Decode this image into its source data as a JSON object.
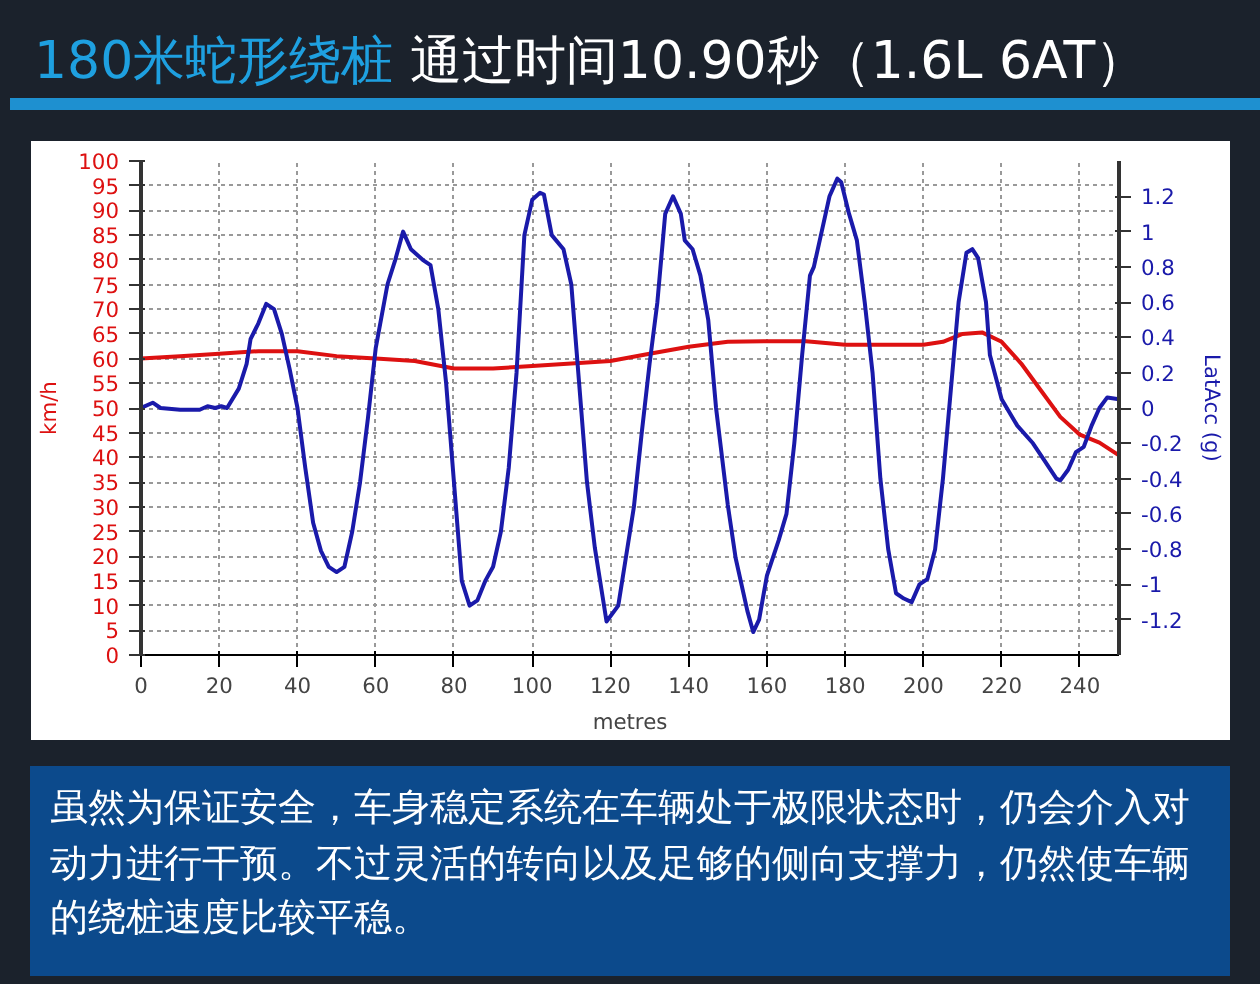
{
  "chart_data": {
    "type": "line",
    "title": "180米蛇形绕桩",
    "subtitle": "通过时间10.90秒（1.6L 6AT）",
    "xlabel": "metres",
    "ylabel": "km/h",
    "y2label": "LatAcc (g)",
    "annotations": [
      "虽然为保证安全，车身稳定系统在车辆处于极限状态时，仍会介入对动力进行干预。不过灵活的转向以及足够的侧向支撑力，仍然使车辆的绕桩速度比较平稳。"
    ],
    "xlim": [
      0,
      250
    ],
    "xticks": [
      0,
      20,
      40,
      60,
      80,
      100,
      120,
      140,
      160,
      180,
      200,
      220,
      240
    ],
    "ylim": [
      0,
      100
    ],
    "yticks": [
      0,
      5,
      10,
      15,
      20,
      25,
      30,
      35,
      40,
      45,
      50,
      55,
      60,
      65,
      70,
      75,
      80,
      85,
      90,
      95,
      100
    ],
    "y2lim": [
      -1.4,
      1.4
    ],
    "y2ticks": [
      -1.2,
      -1,
      -0.8,
      -0.6,
      -0.4,
      -0.2,
      0,
      0.2,
      0.4,
      0.6,
      0.8,
      1,
      1.2
    ],
    "grid": true,
    "line_style": "solid",
    "marker": "none",
    "series": [
      {
        "color": "#dd1111",
        "x": [
          0,
          10,
          20,
          30,
          40,
          50,
          60,
          70,
          80,
          90,
          100,
          110,
          120,
          130,
          140,
          150,
          160,
          170,
          180,
          190,
          200,
          205,
          210,
          215,
          220,
          225,
          230,
          235,
          240,
          245,
          250
        ],
        "values": [
          60,
          60.5,
          61,
          61.5,
          61.5,
          60.5,
          60,
          59.5,
          58,
          58,
          58.5,
          59,
          59.5,
          61,
          62.4,
          63.4,
          63.5,
          63.5,
          62.8,
          62.8,
          62.8,
          63.4,
          65,
          65.3,
          63.4,
          59,
          53.6,
          48.2,
          44.6,
          43,
          40.4
        ]
      },
      {
        "color": "#1a1aaa",
        "axis": "y2",
        "x": [
          0,
          3,
          5,
          10,
          15,
          17,
          19,
          20.5,
          22,
          25,
          27,
          28,
          30,
          32,
          34,
          36,
          38,
          40,
          42,
          44,
          46,
          48,
          50,
          52,
          54,
          56,
          58,
          60,
          63,
          65,
          67,
          69,
          72,
          74,
          76,
          78,
          80,
          82,
          84,
          86,
          88,
          90,
          92,
          94,
          96,
          98,
          100,
          102,
          103,
          105,
          108,
          110,
          112,
          114,
          116,
          118,
          119,
          122,
          124,
          126,
          128,
          130,
          132,
          134,
          136,
          138,
          139,
          141,
          143,
          145,
          147,
          150,
          152,
          155,
          156.5,
          158,
          160,
          163,
          165,
          167,
          169,
          171,
          172,
          174,
          176,
          178,
          179,
          181,
          183,
          185,
          187,
          189,
          191,
          193,
          195,
          197,
          199,
          201,
          203,
          205,
          207,
          209,
          211,
          212.5,
          214,
          216,
          217,
          220,
          224,
          228,
          231,
          234,
          235,
          237,
          239,
          241,
          243,
          245,
          247,
          250
        ],
        "values": [
          0,
          0.03,
          0,
          -0.01,
          -0.01,
          0.01,
          0,
          0.01,
          0,
          0.11,
          0.25,
          0.39,
          0.48,
          0.59,
          0.56,
          0.42,
          0.22,
          0,
          -0.34,
          -0.65,
          -0.81,
          -0.9,
          -0.93,
          -0.9,
          -0.7,
          -0.42,
          -0.06,
          0.34,
          0.7,
          0.84,
          1.0,
          0.9,
          0.84,
          0.81,
          0.56,
          0.14,
          -0.42,
          -0.98,
          -1.12,
          -1.09,
          -0.98,
          -0.9,
          -0.7,
          -0.34,
          0.2,
          0.98,
          1.18,
          1.22,
          1.21,
          0.98,
          0.9,
          0.7,
          0.14,
          -0.42,
          -0.79,
          -1.07,
          -1.21,
          -1.12,
          -0.84,
          -0.56,
          -0.14,
          0.25,
          0.6,
          1.1,
          1.2,
          1.1,
          0.95,
          0.9,
          0.75,
          0.5,
          0.0,
          -0.55,
          -0.85,
          -1.15,
          -1.27,
          -1.2,
          -0.95,
          -0.75,
          -0.6,
          -0.2,
          0.3,
          0.75,
          0.8,
          1.0,
          1.2,
          1.3,
          1.28,
          1.1,
          0.95,
          0.6,
          0.2,
          -0.4,
          -0.8,
          -1.05,
          -1.08,
          -1.1,
          -1.0,
          -0.97,
          -0.8,
          -0.4,
          0.1,
          0.6,
          0.88,
          0.9,
          0.85,
          0.6,
          0.3,
          0.05,
          -0.1,
          -0.2,
          -0.3,
          -0.4,
          -0.41,
          -0.35,
          -0.25,
          -0.22,
          -0.1,
          0.0,
          0.06,
          0.05
        ]
      }
    ]
  }
}
